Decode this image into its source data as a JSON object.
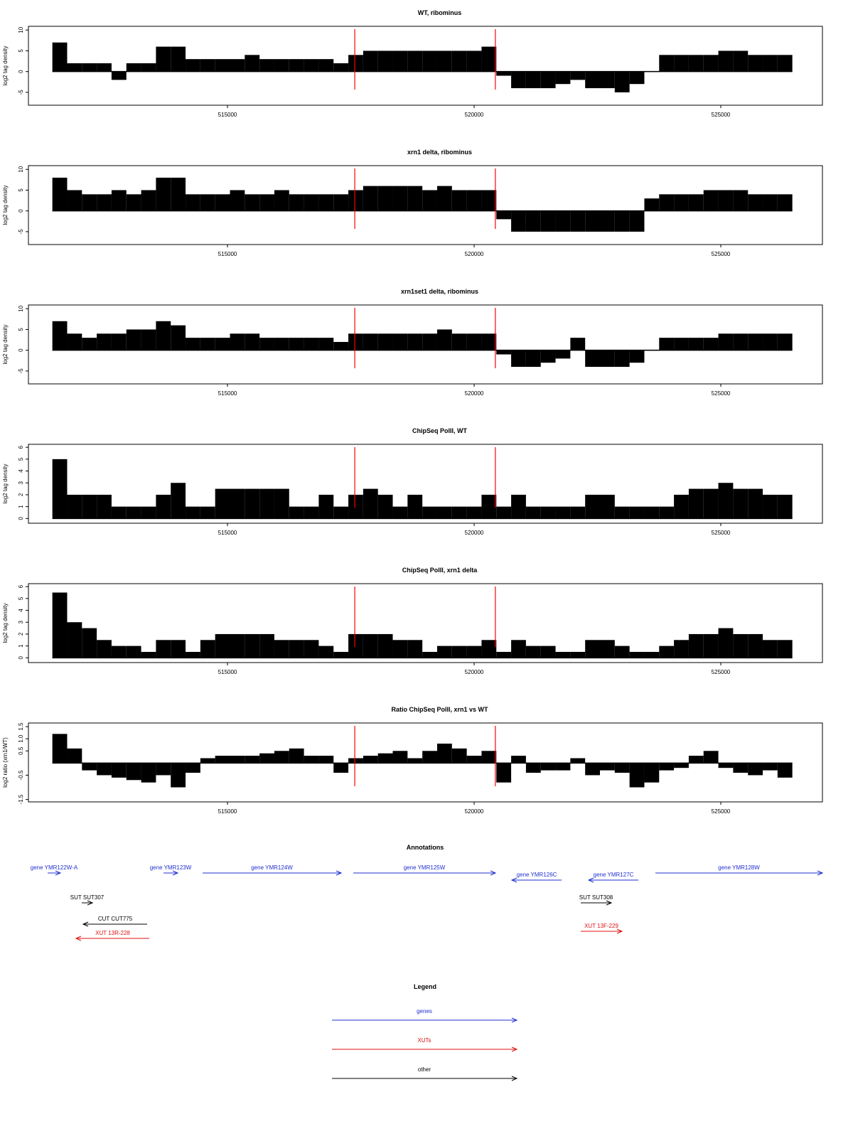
{
  "chart_data": [
    {
      "type": "bar",
      "title": "WT, ribominus",
      "y_label": "log2 tag density",
      "color": "#000000",
      "xlim": [
        510965,
        527060
      ],
      "xticks": [
        515000,
        520000,
        525000
      ],
      "ylim": [
        -8.1,
        10.9
      ],
      "yticks": [
        -5,
        0,
        5,
        10
      ],
      "vlines": [
        517580,
        520430
      ],
      "vline_color": "#ff0000",
      "x": [
        511600,
        511900,
        512200,
        512500,
        512800,
        513100,
        513400,
        513700,
        514000,
        514300,
        514600,
        514900,
        515200,
        515500,
        515800,
        516100,
        516400,
        516700,
        517000,
        517300,
        517600,
        517900,
        518200,
        518500,
        518800,
        519100,
        519400,
        519700,
        520000,
        520300,
        520600,
        520900,
        521200,
        521500,
        521800,
        522100,
        522400,
        522700,
        523000,
        523300,
        523600,
        523900,
        524200,
        524500,
        524800,
        525100,
        525400,
        525700,
        526000,
        526300
      ],
      "values": [
        7,
        2,
        2,
        2,
        -2,
        2,
        2,
        6,
        6,
        3,
        3,
        3,
        3,
        4,
        3,
        3,
        3,
        3,
        3,
        2,
        4,
        5,
        5,
        5,
        5,
        5,
        5,
        5,
        5,
        6,
        -1,
        -4,
        -4,
        -4,
        -3,
        -2,
        -4,
        -4,
        -5,
        -3,
        0,
        4,
        4,
        4,
        4,
        5,
        5,
        4,
        4,
        4
      ]
    },
    {
      "type": "bar",
      "title": "xrn1 delta, ribominus",
      "y_label": "log2 tag density",
      "color": "#000000",
      "xlim": [
        510965,
        527060
      ],
      "xticks": [
        515000,
        520000,
        525000
      ],
      "ylim": [
        -8.1,
        10.9
      ],
      "yticks": [
        -5,
        0,
        5,
        10
      ],
      "vlines": [
        517580,
        520430
      ],
      "vline_color": "#ff0000",
      "x": [
        511600,
        511900,
        512200,
        512500,
        512800,
        513100,
        513400,
        513700,
        514000,
        514300,
        514600,
        514900,
        515200,
        515500,
        515800,
        516100,
        516400,
        516700,
        517000,
        517300,
        517600,
        517900,
        518200,
        518500,
        518800,
        519100,
        519400,
        519700,
        520000,
        520300,
        520600,
        520900,
        521200,
        521500,
        521800,
        522100,
        522400,
        522700,
        523000,
        523300,
        523600,
        523900,
        524200,
        524500,
        524800,
        525100,
        525400,
        525700,
        526000,
        526300
      ],
      "values": [
        8,
        5,
        4,
        4,
        5,
        4,
        5,
        8,
        8,
        4,
        4,
        4,
        5,
        4,
        4,
        5,
        4,
        4,
        4,
        4,
        5,
        6,
        6,
        6,
        6,
        5,
        6,
        5,
        5,
        5,
        -2,
        -5,
        -5,
        -5,
        -5,
        -5,
        -5,
        -5,
        -5,
        -5,
        3,
        4,
        4,
        4,
        5,
        5,
        5,
        4,
        4,
        4
      ]
    },
    {
      "type": "bar",
      "title": "xrn1set1 delta, ribominus",
      "y_label": "log2 tag density",
      "color": "#000000",
      "xlim": [
        510965,
        527060
      ],
      "xticks": [
        515000,
        520000,
        525000
      ],
      "ylim": [
        -8.1,
        10.9
      ],
      "yticks": [
        -5,
        0,
        5,
        10
      ],
      "vlines": [
        517580,
        520430
      ],
      "vline_color": "#ff0000",
      "x": [
        511600,
        511900,
        512200,
        512500,
        512800,
        513100,
        513400,
        513700,
        514000,
        514300,
        514600,
        514900,
        515200,
        515500,
        515800,
        516100,
        516400,
        516700,
        517000,
        517300,
        517600,
        517900,
        518200,
        518500,
        518800,
        519100,
        519400,
        519700,
        520000,
        520300,
        520600,
        520900,
        521200,
        521500,
        521800,
        522100,
        522400,
        522700,
        523000,
        523300,
        523600,
        523900,
        524200,
        524500,
        524800,
        525100,
        525400,
        525700,
        526000,
        526300
      ],
      "values": [
        7,
        4,
        3,
        4,
        4,
        5,
        5,
        7,
        6,
        3,
        3,
        3,
        4,
        4,
        3,
        3,
        3,
        3,
        3,
        2,
        4,
        4,
        4,
        4,
        4,
        4,
        5,
        4,
        4,
        4,
        -1,
        -4,
        -4,
        -3,
        -2,
        3,
        -4,
        -4,
        -4,
        -3,
        0,
        3,
        3,
        3,
        3,
        4,
        4,
        4,
        4,
        4
      ]
    },
    {
      "type": "bar",
      "title": "ChipSeq PolII, WT",
      "y_label": "log2 tag density",
      "color": "#000000",
      "xlim": [
        510965,
        527060
      ],
      "xticks": [
        515000,
        520000,
        525000
      ],
      "ylim": [
        -0.4,
        6.25
      ],
      "yticks": [
        0,
        1,
        2,
        3,
        4,
        5,
        6
      ],
      "vlines": [
        517580,
        520430
      ],
      "vline_color": "#ff0000",
      "x": [
        511600,
        511900,
        512200,
        512500,
        512800,
        513100,
        513400,
        513700,
        514000,
        514300,
        514600,
        514900,
        515200,
        515500,
        515800,
        516100,
        516400,
        516700,
        517000,
        517300,
        517600,
        517900,
        518200,
        518500,
        518800,
        519100,
        519400,
        519700,
        520000,
        520300,
        520600,
        520900,
        521200,
        521500,
        521800,
        522100,
        522400,
        522700,
        523000,
        523300,
        523600,
        523900,
        524200,
        524500,
        524800,
        525100,
        525400,
        525700,
        526000,
        526300
      ],
      "values": [
        5,
        2,
        2,
        2,
        1,
        1,
        1,
        2,
        3,
        1,
        1,
        2.5,
        2.5,
        2.5,
        2.5,
        2.5,
        1,
        1,
        2,
        1,
        2,
        2.5,
        2,
        1,
        2,
        1,
        1,
        1,
        1,
        2,
        1,
        2,
        1,
        1,
        1,
        1,
        2,
        2,
        1,
        1,
        1,
        1,
        2,
        2.5,
        2.5,
        3,
        2.5,
        2.5,
        2,
        2
      ]
    },
    {
      "type": "bar",
      "title": "ChipSeq PolII, xrn1 delta",
      "y_label": "log2 tag density",
      "color": "#000000",
      "xlim": [
        510965,
        527060
      ],
      "xticks": [
        515000,
        520000,
        525000
      ],
      "ylim": [
        -0.4,
        6.25
      ],
      "yticks": [
        0,
        1,
        2,
        3,
        4,
        5,
        6
      ],
      "vlines": [
        517580,
        520430
      ],
      "vline_color": "#ff0000",
      "x": [
        511600,
        511900,
        512200,
        512500,
        512800,
        513100,
        513400,
        513700,
        514000,
        514300,
        514600,
        514900,
        515200,
        515500,
        515800,
        516100,
        516400,
        516700,
        517000,
        517300,
        517600,
        517900,
        518200,
        518500,
        518800,
        519100,
        519400,
        519700,
        520000,
        520300,
        520600,
        520900,
        521200,
        521500,
        521800,
        522100,
        522400,
        522700,
        523000,
        523300,
        523600,
        523900,
        524200,
        524500,
        524800,
        525100,
        525400,
        525700,
        526000,
        526300
      ],
      "values": [
        5.5,
        3,
        2.5,
        1.5,
        1,
        1,
        0.5,
        1.5,
        1.5,
        0.5,
        1.5,
        2,
        2,
        2,
        2,
        1.5,
        1.5,
        1.5,
        1,
        0.5,
        2,
        2,
        2,
        1.5,
        1.5,
        0.5,
        1,
        1,
        1,
        1.5,
        0.5,
        1.5,
        1,
        1,
        0.5,
        0.5,
        1.5,
        1.5,
        1,
        0.5,
        0.5,
        1,
        1.5,
        2,
        2,
        2.5,
        2,
        2,
        1.5,
        1.5
      ]
    },
    {
      "type": "bar",
      "title": "Ratio ChipSeq PolII, xrn1 vs WT",
      "y_label": "log2 ratio (xrn1/WT)",
      "color": "#000000",
      "xlim": [
        510965,
        527060
      ],
      "xticks": [
        515000,
        520000,
        525000
      ],
      "ylim": [
        -1.6,
        1.65
      ],
      "yticks": [
        -1.5,
        -0.5,
        0.5,
        {
          "value": 1,
          "label": "1.0"
        },
        1.5
      ],
      "vlines": [
        517580,
        520430
      ],
      "vline_color": "#ff0000",
      "x": [
        511600,
        511900,
        512200,
        512500,
        512800,
        513100,
        513400,
        513700,
        514000,
        514300,
        514600,
        514900,
        515200,
        515500,
        515800,
        516100,
        516400,
        516700,
        517000,
        517300,
        517600,
        517900,
        518200,
        518500,
        518800,
        519100,
        519400,
        519700,
        520000,
        520300,
        520600,
        520900,
        521200,
        521500,
        521800,
        522100,
        522400,
        522700,
        523000,
        523300,
        523600,
        523900,
        524200,
        524500,
        524800,
        525100,
        525400,
        525700,
        526000,
        526300
      ],
      "values": [
        1.2,
        0.6,
        -0.3,
        -0.5,
        -0.6,
        -0.7,
        -0.8,
        -0.5,
        -1.0,
        -0.4,
        0.2,
        0.3,
        0.3,
        0.3,
        0.4,
        0.5,
        0.6,
        0.3,
        0.3,
        -0.4,
        0.2,
        0.3,
        0.4,
        0.5,
        0.2,
        0.5,
        0.8,
        0.6,
        0.3,
        0.5,
        -0.8,
        0.3,
        -0.4,
        -0.3,
        -0.3,
        0.2,
        -0.5,
        -0.3,
        -0.4,
        -1.0,
        -0.8,
        -0.3,
        -0.2,
        0.3,
        0.5,
        -0.2,
        -0.4,
        -0.5,
        -0.3,
        -0.6
      ]
    }
  ],
  "annotations": {
    "title": "Annotations",
    "items": [
      {
        "label": "gene YMR122W-A",
        "color": "#1f2fd0",
        "start": 511354,
        "end": 511613
      },
      {
        "label": "gene YMR123W",
        "color": "#1f2fd0",
        "start": 513703,
        "end": 513991
      },
      {
        "label": "gene YMR124W",
        "color": "#1f2fd0",
        "start": 514496,
        "end": 517305
      },
      {
        "label": "gene YMR125W",
        "color": "#1f2fd0",
        "start": 517550,
        "end": 520432
      },
      {
        "label": "gene YMR126C",
        "color": "#1f2fd0",
        "start": 521773,
        "end": 520764
      },
      {
        "label": "gene YMR127C",
        "color": "#1f2fd0",
        "start": 523329,
        "end": 522320
      },
      {
        "label": "gene YMR128W",
        "color": "#1f2fd0",
        "start": 523674,
        "end": 527061
      },
      {
        "label": "SUT SUT307",
        "color": "#000000",
        "start": 512046,
        "end": 512262
      },
      {
        "label": "SUT SUT308",
        "color": "#000000",
        "start": 522161,
        "end": 522781
      },
      {
        "label": "CUT CUT775",
        "color": "#000000",
        "start": 513372,
        "end": 512075
      },
      {
        "label": "XUT 13R-228",
        "color": "#e01010",
        "start": 513415,
        "end": 511930
      },
      {
        "label": "XUT 13F-229",
        "color": "#e01010",
        "start": 522161,
        "end": 522997
      }
    ]
  },
  "legend": {
    "title": "Legend",
    "items": [
      {
        "label": "genes",
        "color": "#1f2fd0"
      },
      {
        "label": "XUTs",
        "color": "#e01010"
      },
      {
        "label": "other",
        "color": "#000000"
      }
    ]
  }
}
